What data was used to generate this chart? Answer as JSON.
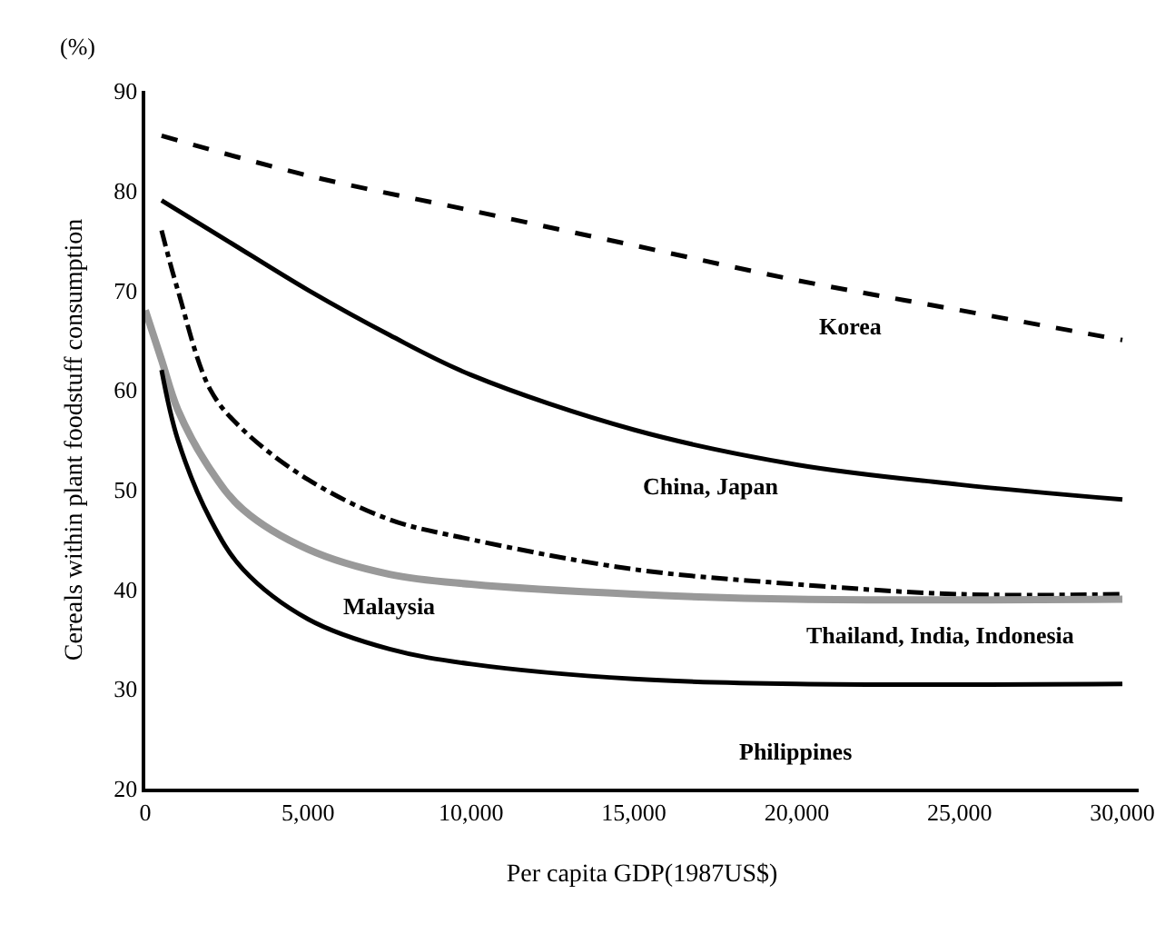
{
  "chart_data": {
    "type": "line",
    "xlabel": "Per capita GDP(1987US$)",
    "ylabel": "Cereals within plant foodstuff consumption",
    "xlim": [
      0,
      30500
    ],
    "ylim": [
      20,
      90
    ],
    "xticks": [
      0,
      {
        "value": 5000,
        "label": "5,000"
      },
      {
        "value": 10000,
        "label": "10,000"
      },
      {
        "value": 15000,
        "label": "15,000"
      },
      {
        "value": 20000,
        "label": "20,000"
      },
      {
        "value": 25000,
        "label": "25,000"
      },
      {
        "value": 30000,
        "label": "30,000"
      }
    ],
    "yticks": [
      20,
      30,
      40,
      50,
      60,
      70,
      80,
      90
    ],
    "grid": false,
    "legend": false,
    "marker": "none",
    "series": [
      {
        "name": "Korea",
        "color": "#000000",
        "line_style": "dashed",
        "x": [
          500,
          5000,
          10000,
          15000,
          20000,
          25000,
          30000
        ],
        "values": [
          85.5,
          81.5,
          78,
          74.5,
          71,
          68,
          65
        ]
      },
      {
        "name": "China, Japan",
        "color": "#000000",
        "line_style": "solid",
        "x": [
          500,
          2500,
          5000,
          7500,
          10000,
          15000,
          20000,
          25000,
          30000
        ],
        "values": [
          79,
          75,
          70,
          65.5,
          61.5,
          56,
          52.5,
          50.5,
          49
        ]
      },
      {
        "name": "Thailand, India, Indonesia",
        "color": "#000000",
        "line_style": "dashdot",
        "x": [
          500,
          1000,
          2000,
          3000,
          5000,
          7500,
          10000,
          15000,
          20000,
          25000,
          30000
        ],
        "values": [
          76,
          70,
          60,
          56,
          51,
          47,
          45,
          42,
          40.5,
          39.5,
          39.5
        ]
      },
      {
        "name": "Malaysia",
        "color": "#999999",
        "line_style": "solid",
        "x": [
          0,
          500,
          1000,
          2000,
          3000,
          5000,
          7500,
          10000,
          15000,
          20000,
          30000
        ],
        "values": [
          68,
          63,
          58,
          52,
          48,
          44,
          41.5,
          40.5,
          39.5,
          39,
          39
        ]
      },
      {
        "name": "Philippines",
        "color": "#000000",
        "line_style": "solid",
        "x": [
          500,
          1000,
          2000,
          3000,
          5000,
          7500,
          10000,
          15000,
          20000,
          30000
        ],
        "values": [
          62,
          55,
          47,
          42,
          37,
          34,
          32.5,
          31,
          30.5,
          30.5
        ]
      }
    ],
    "annotations": [
      "(%)"
    ]
  }
}
